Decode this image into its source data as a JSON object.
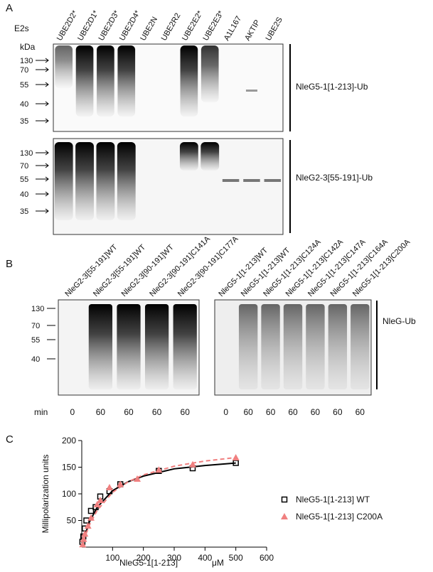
{
  "panel_a": {
    "label": "A",
    "e2s_label": "E2s",
    "kda_label": "kDa",
    "lanes": [
      "UBE2D2*",
      "UBE2D1*",
      "UBE2D3*",
      "UBE2D4*",
      "UBE2N",
      "UBE2R2",
      "UBE2E2*",
      "UBE2E3*",
      "A1L167",
      "AKTIP",
      "UBE2S"
    ],
    "top_blot": {
      "markers": [
        130,
        70,
        55,
        40,
        35
      ],
      "label": "NleG5-1[1-213]-Ub"
    },
    "bottom_blot": {
      "markers": [
        130,
        70,
        55,
        40,
        35
      ],
      "label": "NleG2-3[55-191]-Ub"
    }
  },
  "panel_b": {
    "label": "B",
    "min_label": "min",
    "left_blot": {
      "lanes": [
        "NleG2-3[55-191]WT",
        "NleG2-3[55-191]WT",
        "NleG2-3[90-191]WT",
        "NleG2-3[90-191]C141A",
        "NleG2-3[90-191]C177A"
      ],
      "markers": [
        130,
        70,
        55,
        40
      ],
      "times": [
        0,
        60,
        60,
        60,
        60
      ]
    },
    "right_blot": {
      "lanes": [
        "NleG5-1[1-213]WT",
        "NleG5-1[1-213]WT",
        "NleG5-1[1-213]C124A",
        "NleG5-1[1-213]C142A",
        "NleG5-1[1-213]C147A",
        "NleG5-1[1-213]C164A",
        "NleG5-1[1-213]C200A"
      ],
      "times": [
        0,
        60,
        60,
        60,
        60,
        60,
        60
      ],
      "label": "NleG-Ub"
    }
  },
  "panel_c": {
    "label": "C"
  },
  "chart_data": {
    "type": "scatter",
    "ylabel": "Millipolarization units",
    "xlabel": "NleG5-1[1-213]",
    "xunit": "μM",
    "xlim": [
      0,
      600
    ],
    "xticks": [
      100,
      200,
      300,
      400,
      500,
      600
    ],
    "ylim": [
      0,
      200
    ],
    "yticks": [
      50,
      100,
      150,
      200
    ],
    "series": [
      {
        "name": "NleG5-1[1-213] WT",
        "color": "#000000",
        "marker": "square",
        "line": "solid",
        "x": [
          2,
          5,
          10,
          15,
          30,
          45,
          60,
          90,
          125,
          250,
          360,
          500
        ],
        "values": [
          10,
          20,
          35,
          50,
          68,
          75,
          95,
          105,
          118,
          143,
          148,
          158
        ],
        "fit": {
          "x": [
            0,
            10,
            25,
            50,
            100,
            150,
            200,
            300,
            400,
            500
          ],
          "values": [
            0,
            22.5,
            47.4,
            75,
            105.9,
            122.7,
            133.3,
            146.9,
            153.2,
            157.9
          ]
        }
      },
      {
        "name": "NleG5-1[1-213] C200A",
        "color": "#f08080",
        "marker": "triangle",
        "line": "dashed",
        "x": [
          3,
          6,
          10,
          20,
          30,
          50,
          60,
          90,
          125,
          180,
          250,
          360,
          500
        ],
        "values": [
          5,
          15,
          25,
          40,
          55,
          80,
          88,
          112,
          118,
          128,
          145,
          155,
          168
        ],
        "fit": {
          "x": [
            0,
            10,
            25,
            50,
            100,
            150,
            200,
            300,
            400,
            500
          ],
          "values": [
            0,
            19,
            41.7,
            69,
            102.6,
            122.4,
            135.6,
            151.9,
            161.6,
            168.1
          ]
        }
      }
    ]
  }
}
